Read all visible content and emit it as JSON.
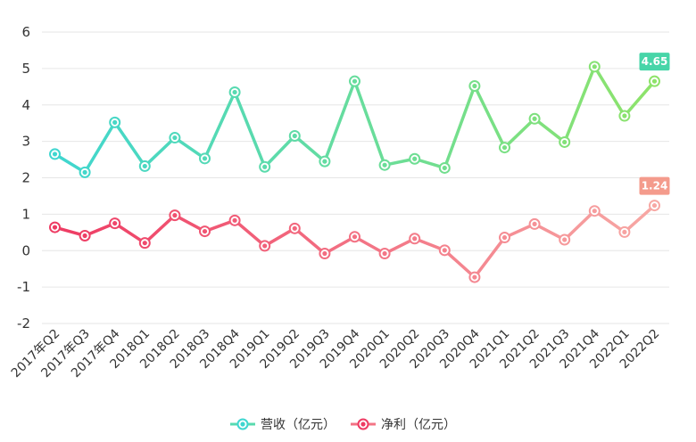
{
  "chart_data": {
    "type": "line",
    "categories": [
      "2017年Q2",
      "2017年Q3",
      "2017年Q4",
      "2018Q1",
      "2018Q2",
      "2018Q3",
      "2018Q4",
      "2019Q1",
      "2019Q2",
      "2019Q3",
      "2019Q4",
      "2020Q1",
      "2020Q2",
      "2020Q3",
      "2020Q4",
      "2021Q1",
      "2021Q2",
      "2021Q3",
      "2021Q4",
      "2022Q1",
      "2022Q2"
    ],
    "ylim": [
      -2,
      6
    ],
    "yticks": [
      -2,
      -1,
      0,
      1,
      2,
      3,
      4,
      5,
      6
    ],
    "grid": true,
    "legend_position": "bottom",
    "series": [
      {
        "name": "营收（亿元）",
        "values": [
          2.65,
          2.15,
          3.52,
          2.32,
          3.1,
          2.53,
          4.35,
          2.3,
          3.15,
          2.45,
          4.65,
          2.35,
          2.52,
          2.27,
          4.52,
          2.83,
          3.62,
          2.98,
          5.05,
          3.7,
          4.65
        ],
        "color_start": "#3fd6d0",
        "color_end": "#8ee36a",
        "end_label": "4.65",
        "badge_color": "#47d5a8"
      },
      {
        "name": "净利（亿元）",
        "values": [
          0.64,
          0.41,
          0.75,
          0.21,
          0.97,
          0.53,
          0.83,
          0.13,
          0.61,
          -0.08,
          0.38,
          -0.08,
          0.33,
          0.01,
          -0.73,
          0.36,
          0.73,
          0.3,
          1.09,
          0.51,
          1.24
        ],
        "color_start": "#ee3b63",
        "color_end": "#f7a8a4",
        "end_label": "1.24",
        "badge_color": "#f49b8c"
      }
    ]
  }
}
